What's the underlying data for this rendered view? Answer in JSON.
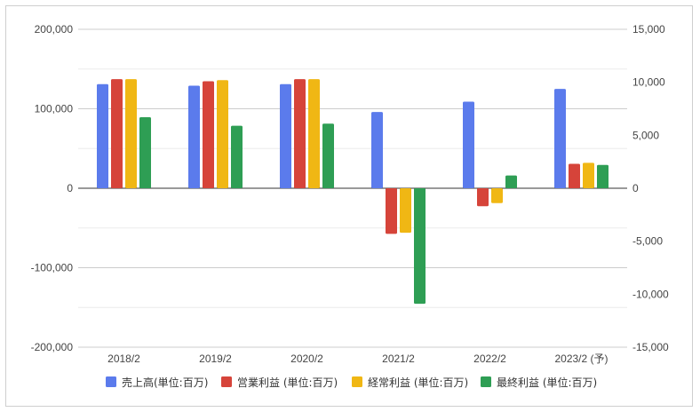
{
  "chart_data": {
    "type": "bar",
    "categories": [
      "2018/2",
      "2019/2",
      "2020/2",
      "2021/2",
      "2022/2",
      "2023/2 (予)"
    ],
    "left_axis": {
      "ylim": [
        -200000,
        200000
      ],
      "ticks": [
        200000,
        100000,
        0,
        -100000,
        -200000
      ],
      "tick_labels": [
        "200,000",
        "100,000",
        "0",
        "-100,000",
        "-200,000"
      ]
    },
    "right_axis": {
      "ylim": [
        -15000,
        15000
      ],
      "ticks": [
        15000,
        10000,
        5000,
        0,
        -5000,
        -10000,
        -15000
      ],
      "tick_labels": [
        "15,000",
        "10,000",
        "5,000",
        "0",
        "-5,000",
        "-10,000",
        "-15,000"
      ]
    },
    "series": [
      {
        "name": "売上高(単位:百万)",
        "axis": "left",
        "color": "#5b7bec",
        "values": [
          131000,
          129000,
          131000,
          96000,
          109000,
          125000
        ]
      },
      {
        "name": "営業利益 (単位:百万)",
        "axis": "right",
        "color": "#d6443a",
        "values": [
          10300,
          10100,
          10300,
          -4300,
          -1700,
          2300
        ]
      },
      {
        "name": "経常利益 (単位:百万)",
        "axis": "right",
        "color": "#f0b714",
        "values": [
          10300,
          10200,
          10300,
          -4200,
          -1400,
          2400
        ]
      },
      {
        "name": "最終利益 (単位:百万)",
        "axis": "right",
        "color": "#2e9e54",
        "values": [
          6700,
          5900,
          6100,
          -10900,
          1200,
          2200
        ]
      }
    ],
    "grid": true,
    "legend_position": "bottom"
  }
}
